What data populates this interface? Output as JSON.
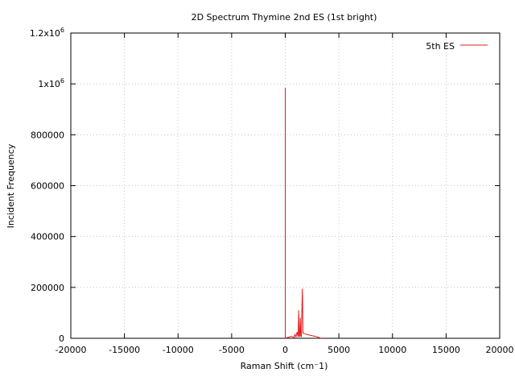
{
  "chart_data": {
    "type": "line",
    "title": "2D Spectrum Thymine 2nd ES (1st bright)",
    "xlabel": "Raman Shift (cm⁻1)",
    "ylabel": "Incident Frequency",
    "xlim": [
      -20000,
      20000
    ],
    "ylim": [
      0,
      1200000
    ],
    "xticks": [
      -20000,
      -15000,
      -10000,
      -5000,
      0,
      5000,
      10000,
      15000,
      20000
    ],
    "xtick_labels": [
      "-20000",
      "-15000",
      "-10000",
      "-5000",
      "0",
      "5000",
      "10000",
      "15000",
      "20000"
    ],
    "yticks": [
      0,
      200000,
      400000,
      600000,
      800000,
      1000000,
      1200000
    ],
    "ytick_labels": [
      {
        "base": "0",
        "exp": ""
      },
      {
        "base": "200000",
        "exp": ""
      },
      {
        "base": "400000",
        "exp": ""
      },
      {
        "base": "600000",
        "exp": ""
      },
      {
        "base": "800000",
        "exp": ""
      },
      {
        "base": "1x10",
        "exp": "6"
      },
      {
        "base": "1.2x10",
        "exp": "6"
      }
    ],
    "grid": true,
    "legend_position": "top-right",
    "series": [
      {
        "name": "5th ES",
        "color": "#e41a1c",
        "x": [
          0,
          0,
          0,
          0,
          200,
          400,
          600,
          800,
          900,
          1000,
          1100,
          1200,
          1250,
          1300,
          1350,
          1400,
          1450,
          1500,
          1550,
          1600,
          1650,
          1700,
          1800,
          2000,
          2500,
          3000,
          3200,
          3400
        ],
        "y": [
          0,
          985000,
          20000,
          0,
          3000,
          5000,
          8000,
          3000,
          15000,
          5000,
          25000,
          5000,
          110000,
          10000,
          5000,
          80000,
          10000,
          5000,
          120000,
          195000,
          20000,
          20000,
          18000,
          15000,
          10000,
          5000,
          2000,
          0
        ]
      }
    ]
  }
}
